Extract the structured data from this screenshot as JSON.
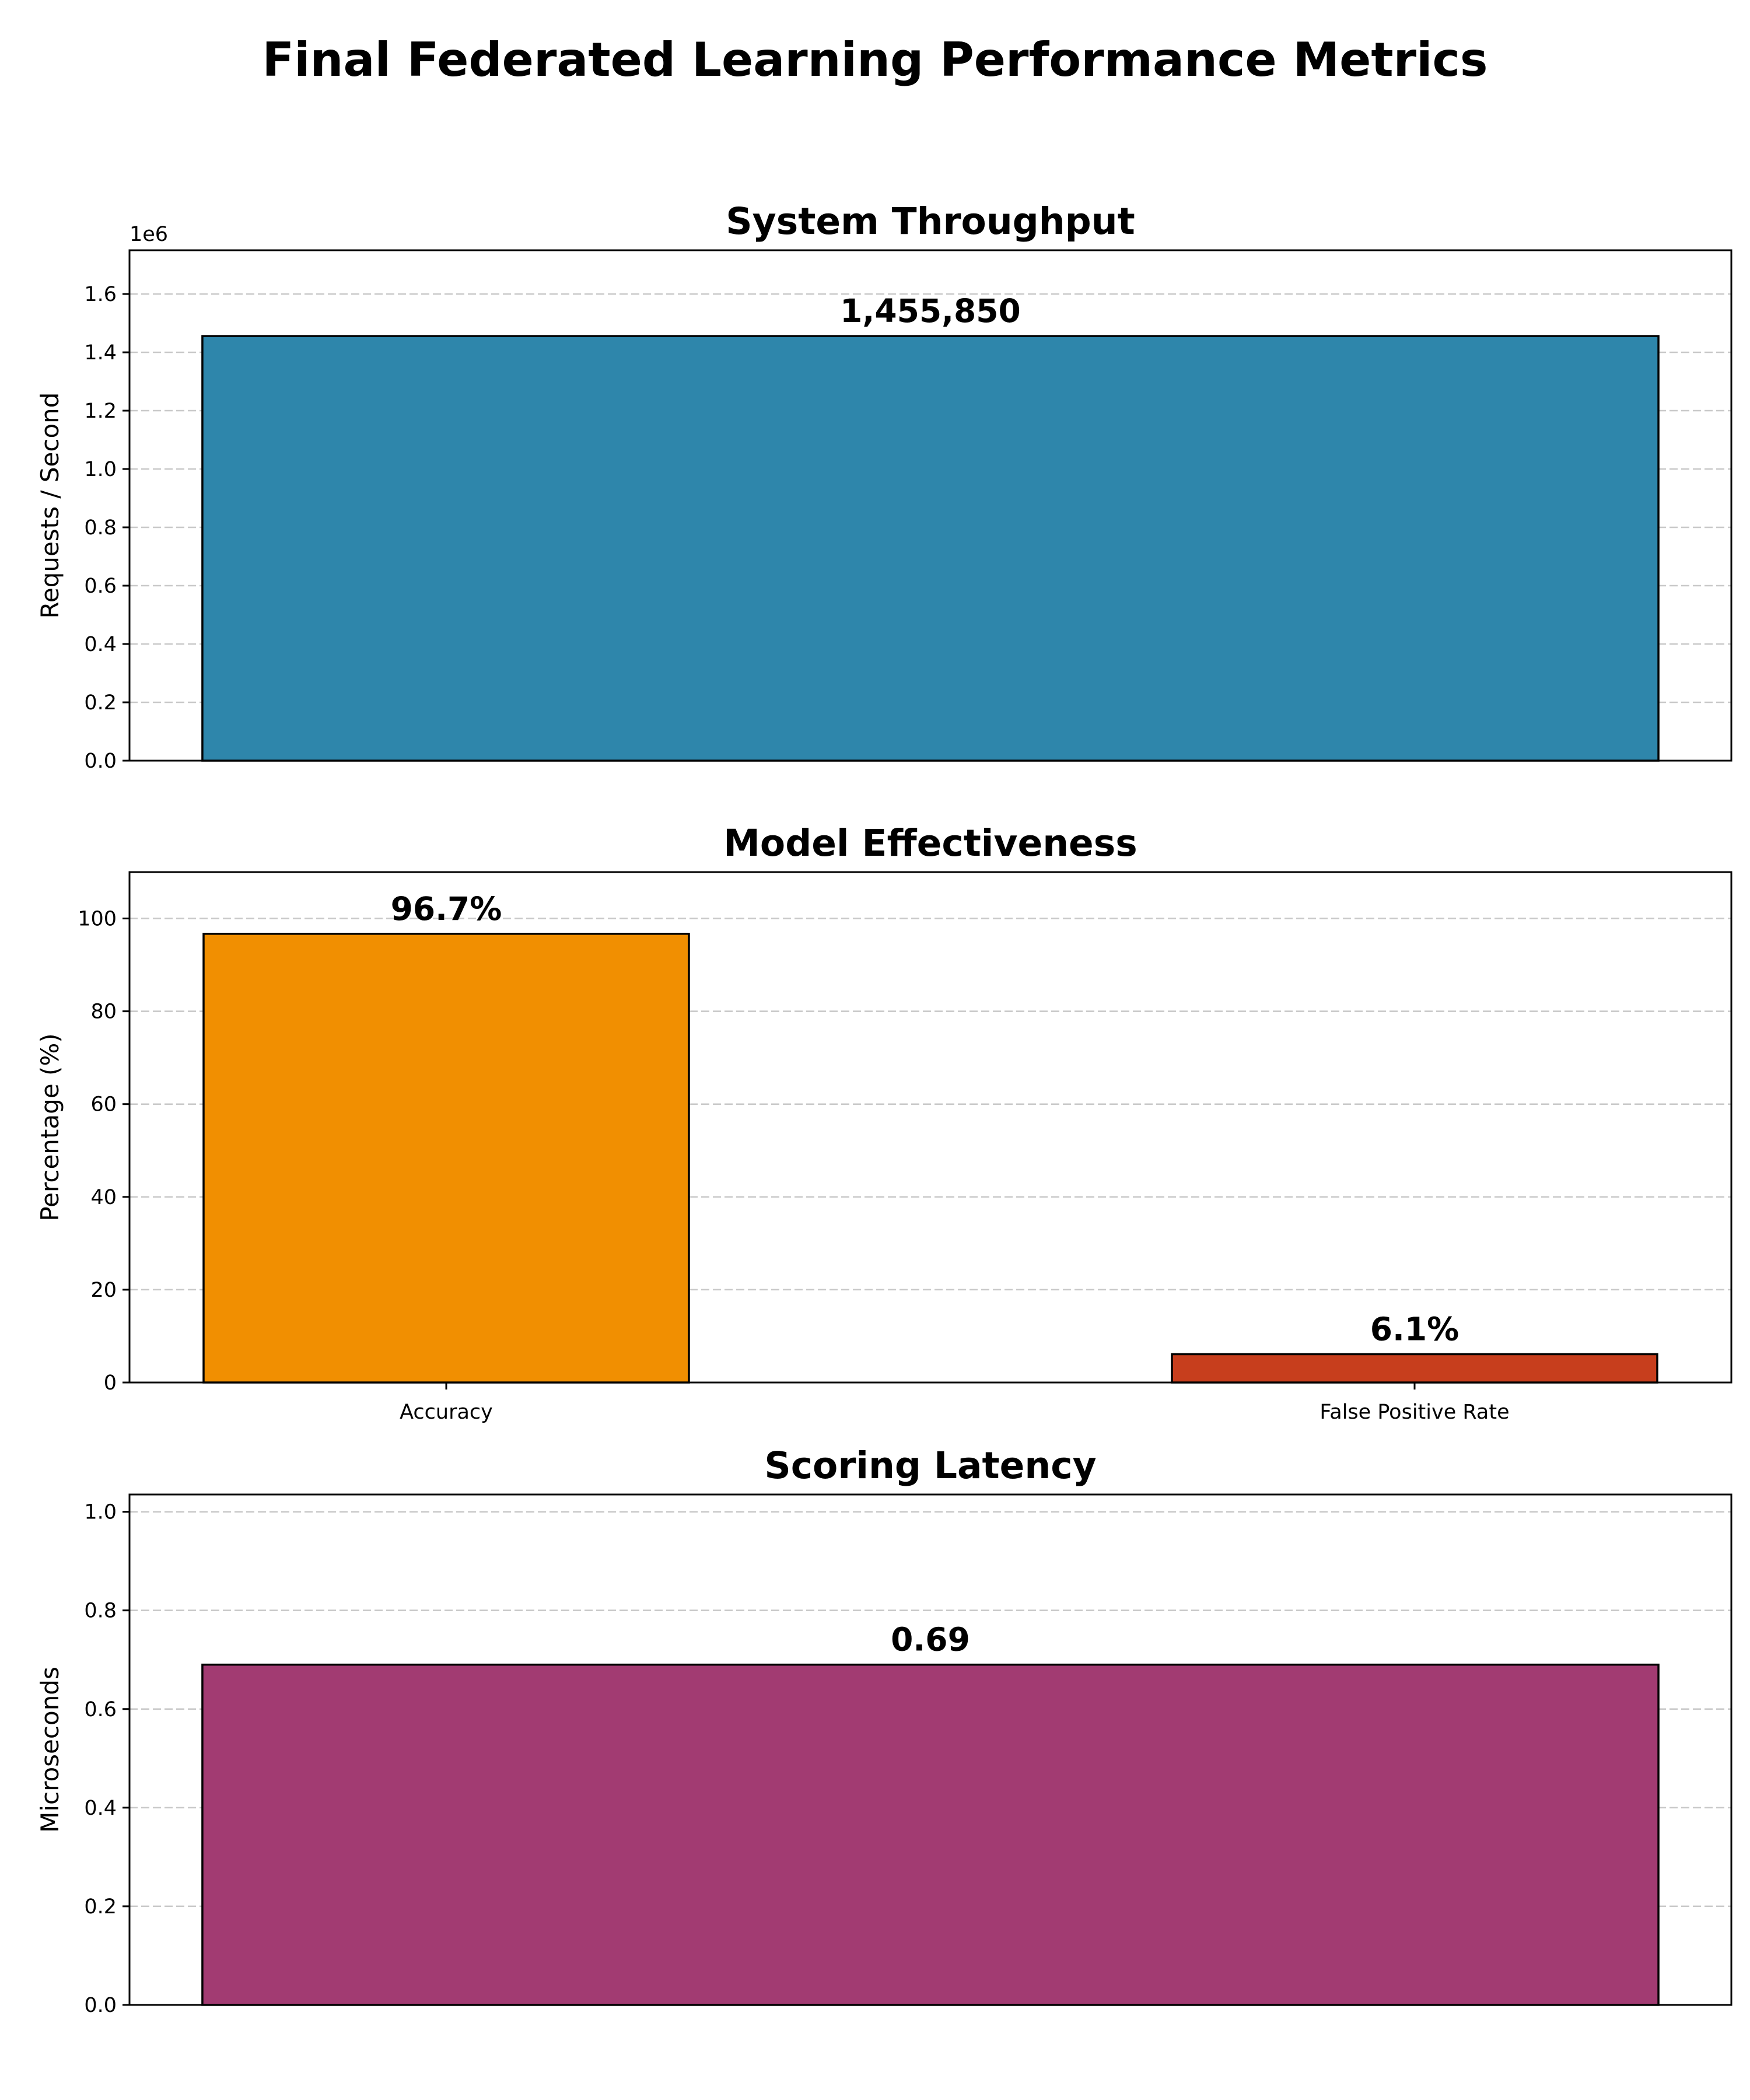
{
  "figure": {
    "title": "Final Federated Learning Performance Metrics"
  },
  "chart_data": [
    {
      "type": "bar",
      "title": "System Throughput",
      "ylabel": "Requests / Second",
      "offset_label": "1e6",
      "tick_scale": 1000000,
      "categories": [
        ""
      ],
      "values": [
        1455850
      ],
      "data_labels": [
        "1,455,850"
      ],
      "colors": [
        "#2e86ab"
      ],
      "ylim": [
        0,
        1750000
      ],
      "yticks": [
        0,
        200000,
        400000,
        600000,
        800000,
        1000000,
        1200000,
        1400000,
        1600000
      ],
      "ytick_labels": [
        "0.0",
        "0.2",
        "0.4",
        "0.6",
        "0.8",
        "1.0",
        "1.2",
        "1.4",
        "1.6"
      ],
      "grid": "y, dashed",
      "legend": "none"
    },
    {
      "type": "bar",
      "title": "Model Effectiveness",
      "ylabel": "Percentage (%)",
      "categories": [
        "Accuracy",
        "False Positive Rate"
      ],
      "values": [
        96.7,
        6.1
      ],
      "data_labels": [
        "96.7%",
        "6.1%"
      ],
      "colors": [
        "#f18f01",
        "#c73e1d"
      ],
      "ylim": [
        0,
        110
      ],
      "yticks": [
        0,
        20,
        40,
        60,
        80,
        100
      ],
      "ytick_labels": [
        "0",
        "20",
        "40",
        "60",
        "80",
        "100"
      ],
      "grid": "y, dashed",
      "legend": "none"
    },
    {
      "type": "bar",
      "title": "Scoring Latency",
      "ylabel": "Microseconds",
      "categories": [
        ""
      ],
      "values": [
        0.69
      ],
      "data_labels": [
        "0.69"
      ],
      "colors": [
        "#a23b72"
      ],
      "ylim": [
        0,
        1.035
      ],
      "yticks": [
        0,
        0.2,
        0.4,
        0.6,
        0.8,
        1.0
      ],
      "ytick_labels": [
        "0.0",
        "0.2",
        "0.4",
        "0.6",
        "0.8",
        "1.0"
      ],
      "grid": "y, dashed",
      "legend": "none"
    }
  ]
}
